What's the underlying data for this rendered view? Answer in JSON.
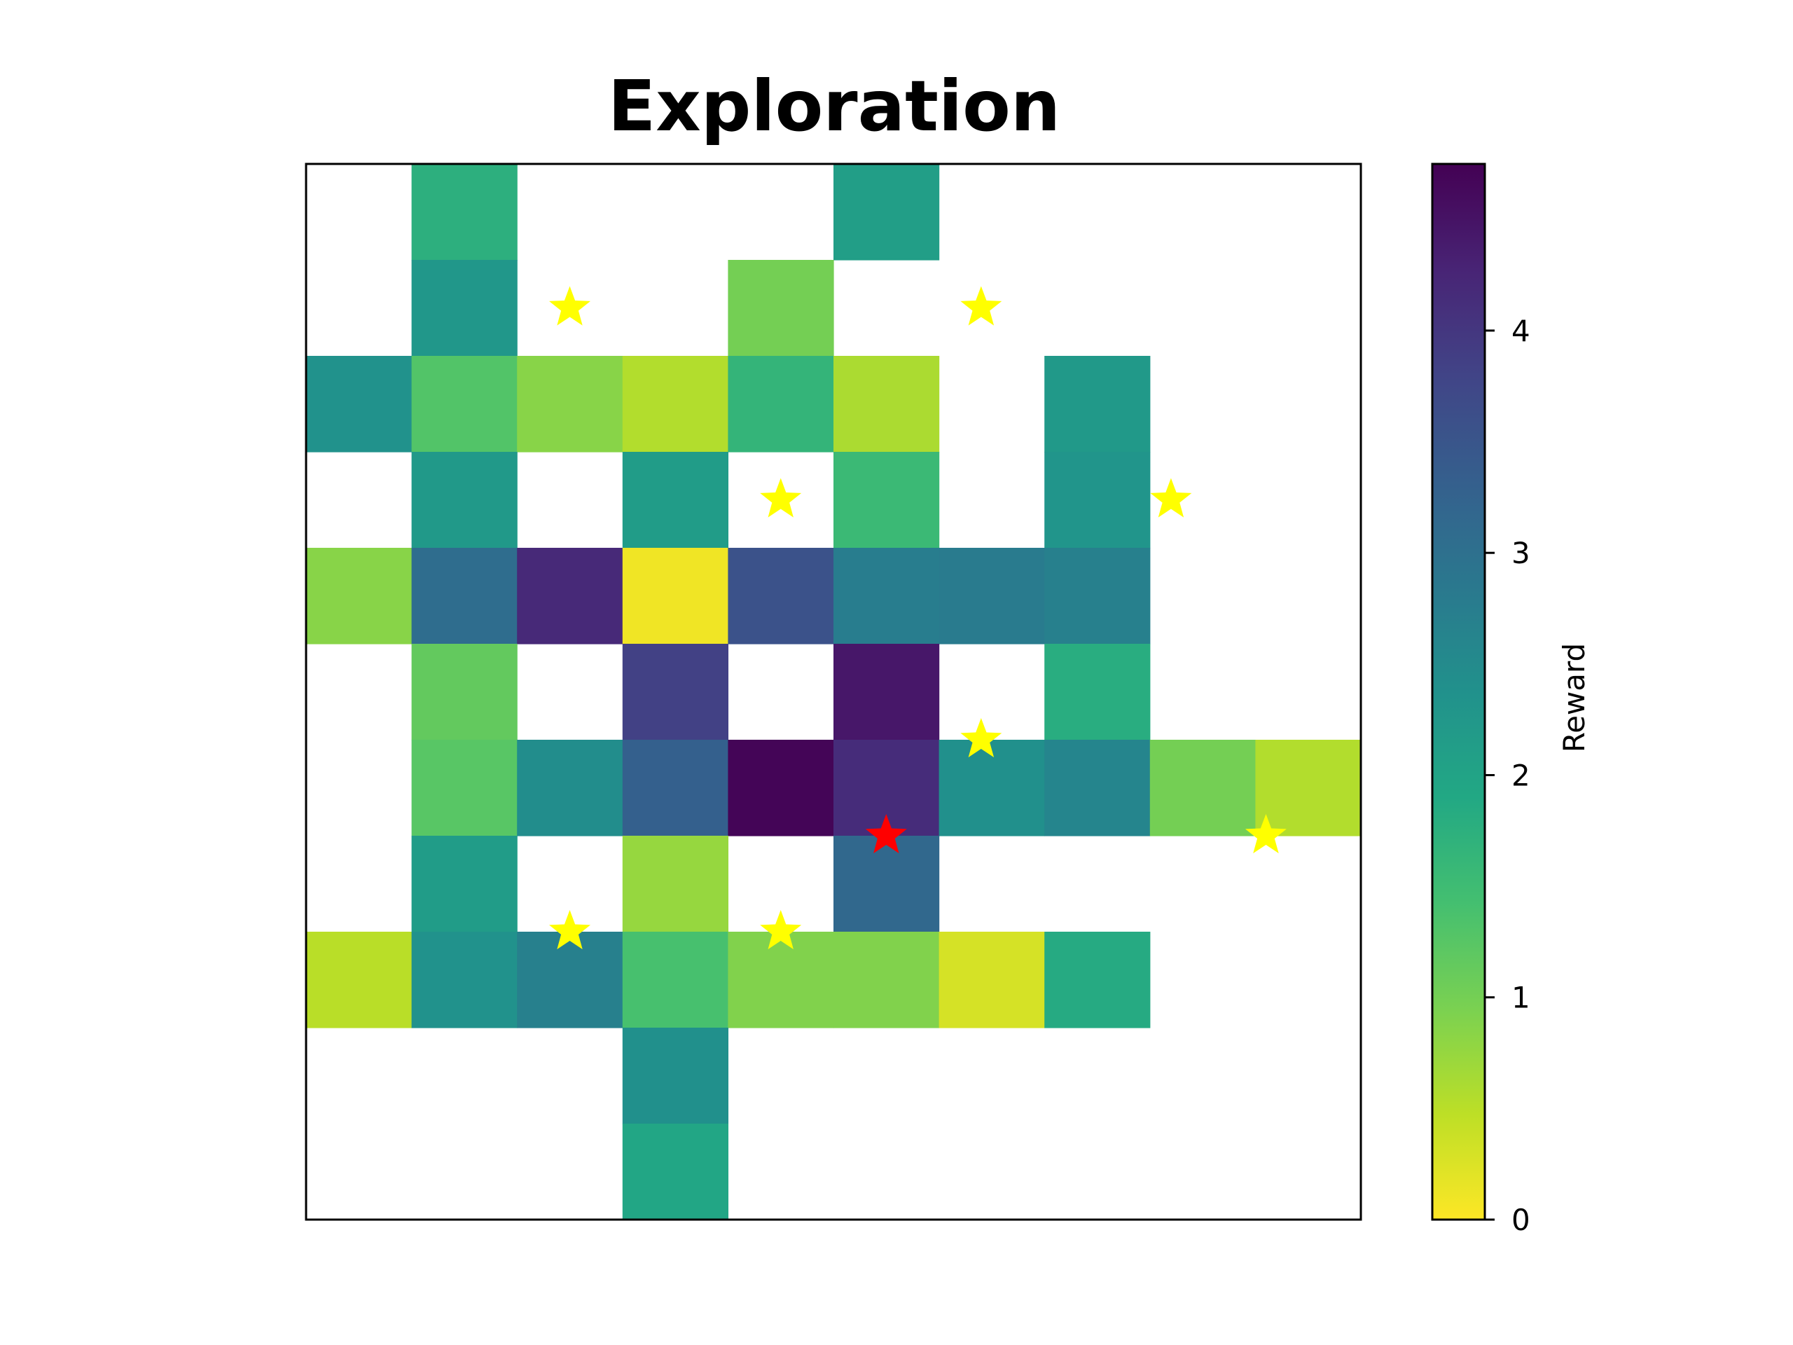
{
  "chart_data": {
    "type": "heatmap",
    "title": "Exploration",
    "grid_rows": 11,
    "grid_cols": 10,
    "axes_ticks_visible": false,
    "value_range": [
      0,
      4.75
    ],
    "colormap": "viridis_r",
    "colorbar": {
      "label": "Reward",
      "ticks": [
        "0",
        "1",
        "2",
        "3",
        "4"
      ],
      "tick_values": [
        0,
        1,
        2,
        3,
        4
      ]
    },
    "cells": [
      [
        null,
        1.75,
        null,
        null,
        null,
        2.1,
        null,
        null,
        null,
        null
      ],
      [
        null,
        2.25,
        null,
        null,
        1.0,
        null,
        null,
        null,
        null,
        null
      ],
      [
        2.35,
        1.3,
        0.85,
        0.55,
        1.65,
        0.6,
        null,
        2.2,
        null,
        null
      ],
      [
        null,
        2.2,
        null,
        2.15,
        null,
        1.55,
        null,
        2.3,
        null,
        null
      ],
      [
        0.85,
        3.05,
        4.2,
        0.1,
        3.55,
        2.75,
        2.8,
        2.7,
        null,
        null
      ],
      [
        null,
        1.15,
        null,
        3.85,
        null,
        4.45,
        null,
        1.8,
        null,
        null
      ],
      [
        null,
        1.25,
        2.45,
        3.3,
        4.7,
        4.15,
        2.4,
        2.6,
        1.0,
        0.55
      ],
      [
        null,
        2.15,
        null,
        0.75,
        null,
        3.15,
        null,
        null,
        null,
        null
      ],
      [
        0.5,
        2.35,
        2.7,
        1.4,
        0.9,
        0.9,
        0.3,
        1.85,
        null,
        null
      ],
      [
        null,
        null,
        null,
        2.4,
        null,
        null,
        null,
        null,
        null,
        null
      ],
      [
        null,
        null,
        null,
        1.95,
        null,
        null,
        null,
        null,
        null,
        null
      ]
    ],
    "markers": [
      {
        "type": "goal",
        "color": "#ffff00",
        "row": 1,
        "col": 2
      },
      {
        "type": "goal",
        "color": "#ffff00",
        "row": 1,
        "col": 5.9
      },
      {
        "type": "goal",
        "color": "#ffff00",
        "row": 3,
        "col": 4
      },
      {
        "type": "goal",
        "color": "#ffff00",
        "row": 3,
        "col": 7.7
      },
      {
        "type": "goal",
        "color": "#ffff00",
        "row": 5.5,
        "col": 5.9
      },
      {
        "type": "goal",
        "color": "#ffff00",
        "row": 6.5,
        "col": 8.6
      },
      {
        "type": "goal",
        "color": "#ffff00",
        "row": 7.5,
        "col": 2
      },
      {
        "type": "goal",
        "color": "#ffff00",
        "row": 7.5,
        "col": 4
      },
      {
        "type": "agent",
        "color": "#ff0000",
        "row": 6.5,
        "col": 5
      }
    ]
  }
}
